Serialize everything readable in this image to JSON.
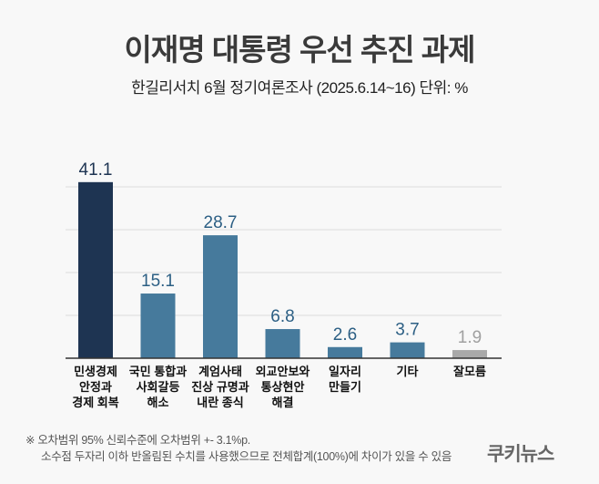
{
  "chart_data": {
    "type": "bar",
    "title": "이재명 대통령 우선 추진 과제",
    "subtitle": "한길리서치 6월 정기여론조사 (2025.6.14~16) 단위: %",
    "categories": [
      [
        "민생경제",
        "안정과",
        "경제 회복"
      ],
      [
        "국민 통합과",
        "사회갈등",
        "해소"
      ],
      [
        "계엄사태",
        "진상 규명과",
        "내란 종식"
      ],
      [
        "외교안보와",
        "통상현안",
        "해결"
      ],
      [
        "일자리",
        "만들기"
      ],
      [
        "기타"
      ],
      [
        "잘모름"
      ]
    ],
    "values": [
      41.1,
      15.1,
      28.7,
      6.8,
      2.6,
      3.7,
      1.9
    ],
    "value_labels": [
      "41.1",
      "15.1",
      "28.7",
      "6.8",
      "2.6",
      "3.7",
      "1.9"
    ],
    "colors": [
      "#1e3452",
      "#467a9c",
      "#467a9c",
      "#467a9c",
      "#467a9c",
      "#467a9c",
      "#a9a9a9"
    ],
    "label_colors": [
      "#1e3452",
      "#2c5f84",
      "#2c5f84",
      "#2c5f84",
      "#2c5f84",
      "#2c5f84",
      "#a0a0a0"
    ],
    "ylim": [
      0,
      41
    ],
    "gridlines": [
      10,
      20,
      30,
      40
    ],
    "grid": true,
    "y_axis_labels_shown": false
  },
  "footnotes": [
    "※ 오차범위 95% 신뢰수준에 오차범위 +- 3.1%p.",
    "소수점 두자리 이하 반올림된 수치를 사용했으므로 전체합계(100%)에 차이가 있을 수 있음"
  ],
  "logo": "쿠키뉴스"
}
